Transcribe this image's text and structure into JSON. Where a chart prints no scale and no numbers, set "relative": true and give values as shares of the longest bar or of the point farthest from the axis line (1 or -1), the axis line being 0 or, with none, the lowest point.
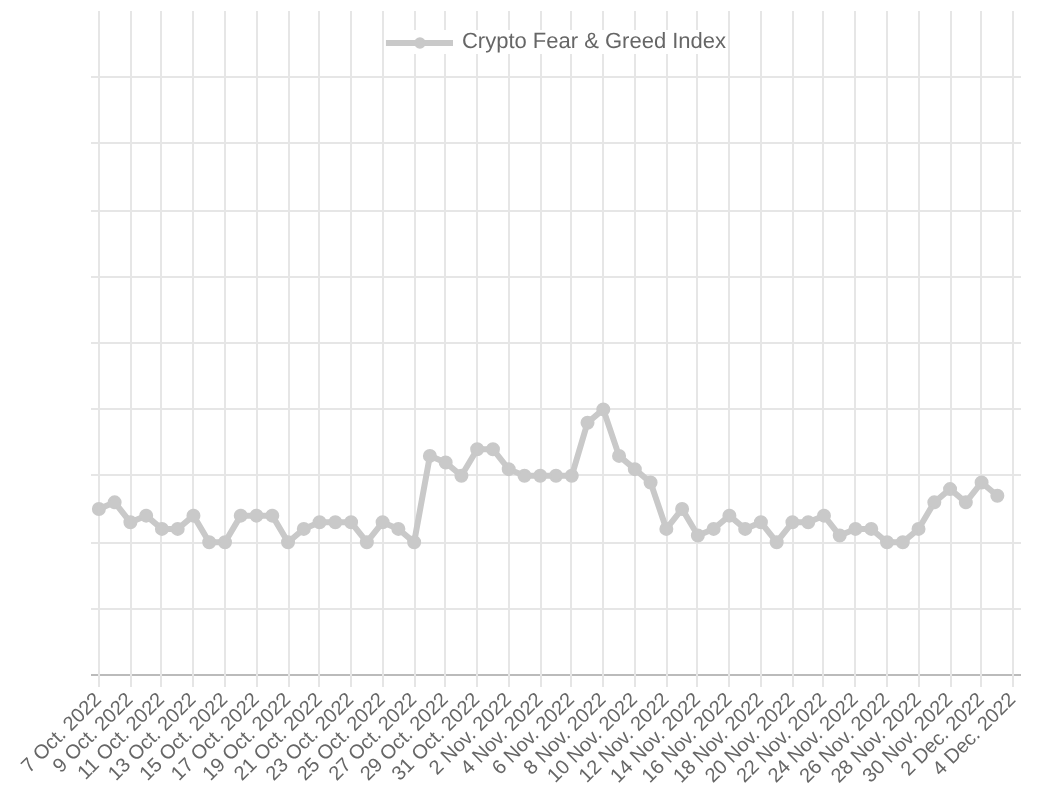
{
  "chart_data": {
    "type": "line",
    "relative": true,
    "grid": true,
    "legend": "top",
    "marker": "circle",
    "line_style": "solid",
    "categories": [
      "7 Oct. 2022",
      null,
      "9 Oct. 2022",
      null,
      "11 Oct. 2022",
      null,
      "13 Oct. 2022",
      null,
      "15 Oct. 2022",
      null,
      "17 Oct. 2022",
      null,
      "19 Oct. 2022",
      null,
      "21 Oct. 2022",
      null,
      "23 Oct. 2022",
      null,
      "25 Oct. 2022",
      null,
      "27 Oct. 2022",
      null,
      "29 Oct. 2022",
      null,
      "31 Oct. 2022",
      null,
      "2 Nov. 2022",
      null,
      "4 Nov. 2022",
      null,
      "6 Nov. 2022",
      null,
      "8 Nov. 2022",
      null,
      "10 Nov. 2022",
      null,
      "12 Nov. 2022",
      null,
      "14 Nov. 2022",
      null,
      "16 Nov. 2022",
      null,
      "18 Nov. 2022",
      null,
      "20 Nov. 2022",
      null,
      "22 Nov. 2022",
      null,
      "24 Nov. 2022",
      null,
      "26 Nov. 2022",
      null,
      "28 Nov. 2022",
      null,
      "30 Nov. 2022",
      null,
      "2 Dec. 2022",
      null,
      "4 Dec. 2022"
    ],
    "series": [
      {
        "name": "Crypto Fear & Greed Index",
        "color": "#c9c9c9",
        "values": [
          0.625,
          0.65,
          0.575,
          0.6,
          0.55,
          0.55,
          0.6,
          0.5,
          0.5,
          0.6,
          0.6,
          0.6,
          0.5,
          0.55,
          0.575,
          0.575,
          0.575,
          0.5,
          0.575,
          0.55,
          0.5,
          0.825,
          0.8,
          0.75,
          0.85,
          0.85,
          0.775,
          0.75,
          0.75,
          0.75,
          0.75,
          0.95,
          1,
          0.825,
          0.775,
          0.725,
          0.55,
          0.625,
          0.525,
          0.55,
          0.6,
          0.55,
          0.575,
          0.5,
          0.575,
          0.575,
          0.6,
          0.525,
          0.55,
          0.55,
          0.5,
          0.5,
          0.55,
          0.65,
          0.7,
          0.65,
          0.725,
          0.675,
          null
        ]
      }
    ]
  }
}
